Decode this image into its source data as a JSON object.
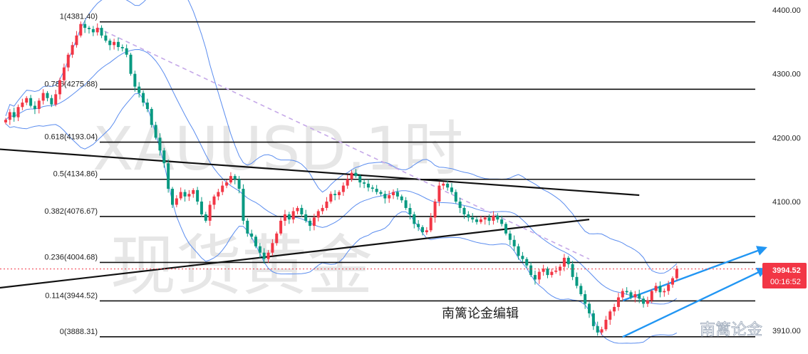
{
  "watermark": {
    "symbol_line": "XAUUSD,1时",
    "name_line": "现货黄金"
  },
  "caption": "南篱论金编辑",
  "corner_watermark": "南篱论金",
  "price_badge": {
    "price": "3994.52",
    "countdown": "00:16:52",
    "color": "#f23645"
  },
  "colors": {
    "up": "#f23645",
    "down": "#089981",
    "band": "#5b8def",
    "fib": "#111111",
    "trend": "#111111",
    "channel": "#2196f3",
    "dashed": "#c5a8e8"
  },
  "chart_data": {
    "type": "candlestick",
    "symbol": "XAUUSD",
    "timeframe": "1时",
    "ylim": [
      3880,
      4405
    ],
    "yticks": [
      4400,
      4300,
      4200,
      4100
    ],
    "ytick_labels": [
      "4400.00",
      "4300.00",
      "4200.00",
      "4100.00"
    ],
    "fibonacci": [
      {
        "label": "1(4381.40)",
        "level": 4381.4
      },
      {
        "label": "0.786(4275.88)",
        "level": 4275.88
      },
      {
        "label": "0.618(4193.04)",
        "level": 4193.04
      },
      {
        "label": "0.5(4134.86)",
        "level": 4134.86
      },
      {
        "label": "0.382(4076.67)",
        "level": 4076.67
      },
      {
        "label": "0.236(4004.68)",
        "level": 4004.68
      },
      {
        "label": "0.114(3944.52)",
        "level": 3944.52
      },
      {
        "label": "0(3888.31)",
        "level": 3888.31
      }
    ],
    "partial_axis_labels": [
      "3910.00"
    ],
    "closes": [
      4228,
      4240,
      4232,
      4248,
      4255,
      4262,
      4250,
      4245,
      4258,
      4270,
      4262,
      4252,
      4268,
      4290,
      4310,
      4330,
      4345,
      4360,
      4378,
      4372,
      4370,
      4365,
      4372,
      4360,
      4352,
      4345,
      4350,
      4342,
      4340,
      4330,
      4300,
      4280,
      4270,
      4255,
      4245,
      4220,
      4200,
      4180,
      4160,
      4120,
      4095,
      4105,
      4115,
      4108,
      4112,
      4118,
      4100,
      4080,
      4070,
      4095,
      4108,
      4115,
      4125,
      4130,
      4140,
      4135,
      4120,
      4070,
      4050,
      4045,
      4030,
      4020,
      4010,
      4020,
      4035,
      4050,
      4070,
      4080,
      4072,
      4085,
      4090,
      4080,
      4070,
      4062,
      4075,
      4085,
      4090,
      4100,
      4112,
      4110,
      4115,
      4125,
      4135,
      4145,
      4140,
      4130,
      4128,
      4122,
      4120,
      4115,
      4112,
      4105,
      4110,
      4115,
      4108,
      4102,
      4090,
      4080,
      4065,
      4060,
      4052,
      4055,
      4075,
      4100,
      4125,
      4128,
      4122,
      4115,
      4100,
      4090,
      4080,
      4075,
      4072,
      4068,
      4072,
      4075,
      4070,
      4078,
      4072,
      4065,
      4050,
      4040,
      4030,
      4015,
      4010,
      4000,
      3985,
      3978,
      3990,
      3995,
      3985,
      3990,
      3992,
      3998,
      4012,
      4002,
      3982,
      3968,
      3955,
      3940,
      3925,
      3905,
      3895,
      3900,
      3915,
      3928,
      3935,
      3950,
      3960,
      3958,
      3950,
      3955,
      3948,
      3940,
      3945,
      3960,
      3968,
      3958,
      3960,
      3970,
      3980,
      3994.52
    ],
    "trendlines": [
      {
        "name": "descending resistance",
        "from": {
          "bar": -8,
          "price": 4185
        },
        "to": {
          "bar": 152,
          "price": 4110
        }
      },
      {
        "name": "ascending support",
        "from": {
          "bar": -8,
          "price": 3960
        },
        "to": {
          "bar": 140,
          "price": 4072
        }
      }
    ],
    "dashed_line": {
      "from": {
        "bar": 22,
        "price": 4372
      },
      "to": {
        "bar": 140,
        "price": 4010
      }
    },
    "channel": [
      {
        "from": {
          "bar": 148,
          "price": 3945
        },
        "to": {
          "bar": 172,
          "price": 4003
        }
      },
      {
        "from": {
          "bar": 148,
          "price": 3888
        },
        "to": {
          "bar": 172,
          "price": 3970
        }
      }
    ]
  }
}
